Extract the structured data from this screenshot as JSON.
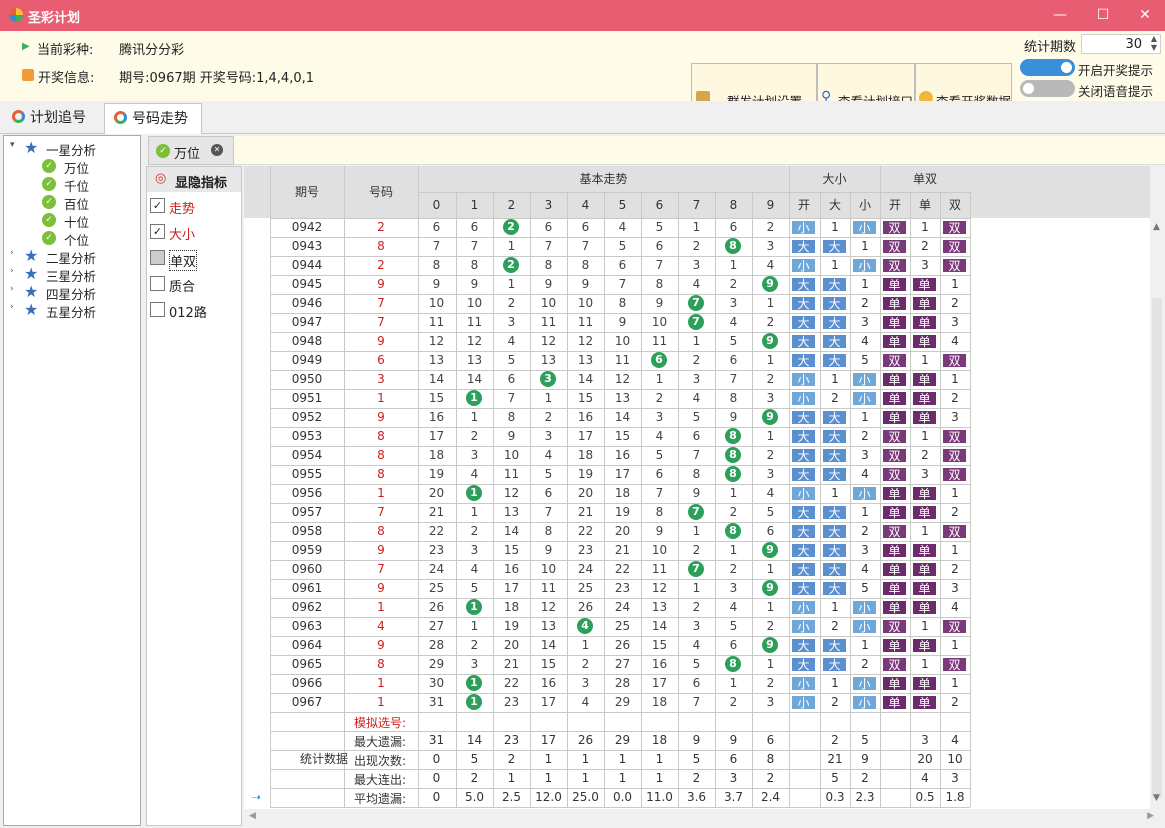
{
  "app": {
    "title": "圣彩计划"
  },
  "window": {
    "minimize": "—",
    "maximize": "☐",
    "close": "✕"
  },
  "info": {
    "lottery_label": "当前彩种:",
    "lottery_value": "腾讯分分彩",
    "draw_label": "开奖信息:",
    "draw_value": "期号:0967期  开奖号码:1,4,4,0,1"
  },
  "toolbar": {
    "group_settings": "群发计划设置",
    "view_api": "查看计划接口",
    "view_data": "查看开奖数据",
    "stat_label": "统计期数",
    "stat_value": "30",
    "toggle_draw": "开启开奖提示",
    "toggle_voice": "关闭语音提示"
  },
  "tabs": [
    {
      "label": "计划追号"
    },
    {
      "label": "号码走势"
    }
  ],
  "tree": {
    "groups": [
      {
        "label": "一星分析"
      },
      {
        "label": "二星分析"
      },
      {
        "label": "三星分析"
      },
      {
        "label": "四星分析"
      },
      {
        "label": "五星分析"
      }
    ],
    "positions": [
      {
        "label": "万位"
      },
      {
        "label": "千位"
      },
      {
        "label": "百位"
      },
      {
        "label": "十位"
      },
      {
        "label": "个位"
      }
    ]
  },
  "subtab": {
    "label": "万位"
  },
  "indicators": {
    "header": "显隐指标",
    "items": [
      {
        "label": "走势",
        "checked": true
      },
      {
        "label": "大小",
        "checked": true
      },
      {
        "label": "单双",
        "checked": false
      },
      {
        "label": "质合",
        "checked": false
      },
      {
        "label": "012路",
        "checked": false
      }
    ]
  },
  "table": {
    "headers": {
      "period": "期号",
      "number": "号码",
      "basic": "基本走势",
      "bigsmall": "大小",
      "oddeven": "单双"
    },
    "digits": [
      "0",
      "1",
      "2",
      "3",
      "4",
      "5",
      "6",
      "7",
      "8",
      "9"
    ],
    "bs_cols": [
      "开",
      "大",
      "小"
    ],
    "oe_cols": [
      "开",
      "单",
      "双"
    ],
    "rows": [
      [
        "0942",
        "2",
        [
          6,
          6,
          "B",
          6,
          6,
          4,
          5,
          1,
          6,
          2
        ],
        [
          "小",
          "1",
          "小"
        ],
        [
          "双",
          "1",
          "双"
        ]
      ],
      [
        "0943",
        "8",
        [
          7,
          7,
          1,
          7,
          7,
          5,
          6,
          2,
          "B",
          3
        ],
        [
          "大",
          "大",
          "1"
        ],
        [
          "双",
          "2",
          "双"
        ]
      ],
      [
        "0944",
        "2",
        [
          8,
          8,
          "B",
          8,
          8,
          6,
          7,
          3,
          1,
          4
        ],
        [
          "小",
          "1",
          "小"
        ],
        [
          "双",
          "3",
          "双"
        ]
      ],
      [
        "0945",
        "9",
        [
          9,
          9,
          1,
          9,
          9,
          7,
          8,
          4,
          2,
          "B"
        ],
        [
          "大",
          "大",
          "1"
        ],
        [
          "单",
          "单",
          "1"
        ]
      ],
      [
        "0946",
        "7",
        [
          10,
          10,
          2,
          10,
          10,
          8,
          9,
          "B",
          3,
          1
        ],
        [
          "大",
          "大",
          "2"
        ],
        [
          "单",
          "单",
          "2"
        ]
      ],
      [
        "0947",
        "7",
        [
          11,
          11,
          3,
          11,
          11,
          9,
          10,
          "B",
          4,
          2
        ],
        [
          "大",
          "大",
          "3"
        ],
        [
          "单",
          "单",
          "3"
        ]
      ],
      [
        "0948",
        "9",
        [
          12,
          12,
          4,
          12,
          12,
          10,
          11,
          1,
          5,
          "B"
        ],
        [
          "大",
          "大",
          "4"
        ],
        [
          "单",
          "单",
          "4"
        ]
      ],
      [
        "0949",
        "6",
        [
          13,
          13,
          5,
          13,
          13,
          11,
          "B",
          2,
          6,
          1
        ],
        [
          "大",
          "大",
          "5"
        ],
        [
          "双",
          "1",
          "双"
        ]
      ],
      [
        "0950",
        "3",
        [
          14,
          14,
          6,
          "B",
          14,
          12,
          1,
          3,
          7,
          2
        ],
        [
          "小",
          "1",
          "小"
        ],
        [
          "单",
          "单",
          "1"
        ]
      ],
      [
        "0951",
        "1",
        [
          15,
          "B",
          7,
          1,
          15,
          13,
          2,
          4,
          8,
          3
        ],
        [
          "小",
          "2",
          "小"
        ],
        [
          "单",
          "单",
          "2"
        ]
      ],
      [
        "0952",
        "9",
        [
          16,
          1,
          8,
          2,
          16,
          14,
          3,
          5,
          9,
          "B"
        ],
        [
          "大",
          "大",
          "1"
        ],
        [
          "单",
          "单",
          "3"
        ]
      ],
      [
        "0953",
        "8",
        [
          17,
          2,
          9,
          3,
          17,
          15,
          4,
          6,
          "B",
          1
        ],
        [
          "大",
          "大",
          "2"
        ],
        [
          "双",
          "1",
          "双"
        ]
      ],
      [
        "0954",
        "8",
        [
          18,
          3,
          10,
          4,
          18,
          16,
          5,
          7,
          "B",
          2
        ],
        [
          "大",
          "大",
          "3"
        ],
        [
          "双",
          "2",
          "双"
        ]
      ],
      [
        "0955",
        "8",
        [
          19,
          4,
          11,
          5,
          19,
          17,
          6,
          8,
          "B",
          3
        ],
        [
          "大",
          "大",
          "4"
        ],
        [
          "双",
          "3",
          "双"
        ]
      ],
      [
        "0956",
        "1",
        [
          20,
          "B",
          12,
          6,
          20,
          18,
          7,
          9,
          1,
          4
        ],
        [
          "小",
          "1",
          "小"
        ],
        [
          "单",
          "单",
          "1"
        ]
      ],
      [
        "0957",
        "7",
        [
          21,
          1,
          13,
          7,
          21,
          19,
          8,
          "B",
          2,
          5
        ],
        [
          "大",
          "大",
          "1"
        ],
        [
          "单",
          "单",
          "2"
        ]
      ],
      [
        "0958",
        "8",
        [
          22,
          2,
          14,
          8,
          22,
          20,
          9,
          1,
          "B",
          6
        ],
        [
          "大",
          "大",
          "2"
        ],
        [
          "双",
          "1",
          "双"
        ]
      ],
      [
        "0959",
        "9",
        [
          23,
          3,
          15,
          9,
          23,
          21,
          10,
          2,
          1,
          "B"
        ],
        [
          "大",
          "大",
          "3"
        ],
        [
          "单",
          "单",
          "1"
        ]
      ],
      [
        "0960",
        "7",
        [
          24,
          4,
          16,
          10,
          24,
          22,
          11,
          "B",
          2,
          1
        ],
        [
          "大",
          "大",
          "4"
        ],
        [
          "单",
          "单",
          "2"
        ]
      ],
      [
        "0961",
        "9",
        [
          25,
          5,
          17,
          11,
          25,
          23,
          12,
          1,
          3,
          "B"
        ],
        [
          "大",
          "大",
          "5"
        ],
        [
          "单",
          "单",
          "3"
        ]
      ],
      [
        "0962",
        "1",
        [
          26,
          "B",
          18,
          12,
          26,
          24,
          13,
          2,
          4,
          1
        ],
        [
          "小",
          "1",
          "小"
        ],
        [
          "单",
          "单",
          "4"
        ]
      ],
      [
        "0963",
        "4",
        [
          27,
          1,
          19,
          13,
          "B",
          25,
          14,
          3,
          5,
          2
        ],
        [
          "小",
          "2",
          "小"
        ],
        [
          "双",
          "1",
          "双"
        ]
      ],
      [
        "0964",
        "9",
        [
          28,
          2,
          20,
          14,
          1,
          26,
          15,
          4,
          6,
          "B"
        ],
        [
          "大",
          "大",
          "1"
        ],
        [
          "单",
          "单",
          "1"
        ]
      ],
      [
        "0965",
        "8",
        [
          29,
          3,
          21,
          15,
          2,
          27,
          16,
          5,
          "B",
          1
        ],
        [
          "大",
          "大",
          "2"
        ],
        [
          "双",
          "1",
          "双"
        ]
      ],
      [
        "0966",
        "1",
        [
          30,
          "B",
          22,
          16,
          3,
          28,
          17,
          6,
          1,
          2
        ],
        [
          "小",
          "1",
          "小"
        ],
        [
          "单",
          "单",
          "1"
        ]
      ],
      [
        "0967",
        "1",
        [
          31,
          "B",
          23,
          17,
          4,
          29,
          18,
          7,
          2,
          3
        ],
        [
          "小",
          "2",
          "小"
        ],
        [
          "单",
          "单",
          "2"
        ]
      ]
    ],
    "stats_label": "统计数据",
    "stats": [
      {
        "label": "模拟选号:",
        "digits": [
          "",
          "",
          "",
          "",
          "",
          "",
          "",
          "",
          "",
          ""
        ],
        "bs": [
          "",
          "",
          ""
        ],
        "oe": [
          "",
          "",
          ""
        ]
      },
      {
        "label": "最大遗漏:",
        "digits": [
          "31",
          "14",
          "23",
          "17",
          "26",
          "29",
          "18",
          "9",
          "9",
          "6"
        ],
        "bs": [
          "",
          "2",
          "5"
        ],
        "oe": [
          "",
          "3",
          "4"
        ]
      },
      {
        "label": "出现次数:",
        "digits": [
          "0",
          "5",
          "2",
          "1",
          "1",
          "1",
          "1",
          "5",
          "6",
          "8"
        ],
        "bs": [
          "",
          "21",
          "9"
        ],
        "oe": [
          "",
          "20",
          "10"
        ]
      },
      {
        "label": "最大连出:",
        "digits": [
          "0",
          "2",
          "1",
          "1",
          "1",
          "1",
          "1",
          "2",
          "3",
          "2"
        ],
        "bs": [
          "",
          "5",
          "2"
        ],
        "oe": [
          "",
          "4",
          "3"
        ]
      },
      {
        "label": "平均遗漏:",
        "digits": [
          "0",
          "5.0",
          "2.5",
          "12.0",
          "25.0",
          "0.0",
          "11.0",
          "3.6",
          "3.7",
          "2.4"
        ],
        "bs": [
          "",
          "0.3",
          "2.3"
        ],
        "oe": [
          "",
          "0.5",
          "1.8"
        ]
      }
    ]
  },
  "colors": {
    "titlebar": "#e85d72",
    "ball": "#2ca05a",
    "big": "#5b8fd0",
    "small": "#6fa8d8",
    "odd": "#6c2c6c",
    "even": "#7a3a7a",
    "number_red": "#cc1e1e"
  }
}
